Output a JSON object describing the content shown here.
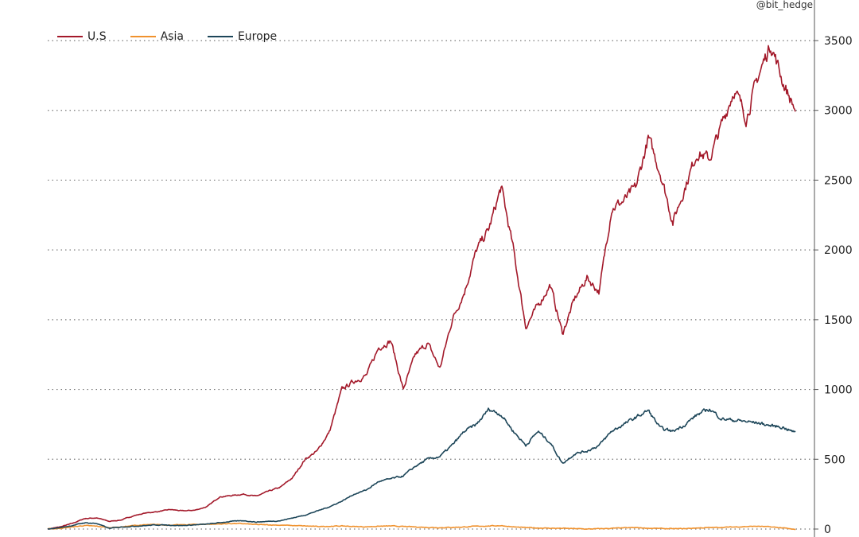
{
  "credit": "@bit_hedge",
  "chart_data": {
    "type": "line",
    "title": "",
    "xlabel": "",
    "ylabel": "",
    "ylim": [
      0,
      3600
    ],
    "y_ticks": [
      0,
      500,
      1000,
      1500,
      2000,
      2500,
      3000,
      3500
    ],
    "y_axis_position": "right",
    "grid": "horizontal dotted",
    "legend_position": "top-left",
    "colors": {
      "U.S": "#a3192a",
      "Asia": "#f0922e",
      "Europe": "#1d4659"
    },
    "series": [
      {
        "name": "U.S",
        "values": [
          0,
          15,
          40,
          75,
          80,
          55,
          65,
          95,
          115,
          125,
          140,
          130,
          135,
          160,
          230,
          240,
          250,
          235,
          270,
          300,
          370,
          500,
          560,
          700,
          1000,
          1060,
          1100,
          1300,
          1350,
          1000,
          1250,
          1330,
          1150,
          1500,
          1700,
          2000,
          2150,
          2450,
          2000,
          1450,
          1600,
          1750,
          1400,
          1650,
          1800,
          1700,
          2300,
          2350,
          2450,
          2800,
          2550,
          2200,
          2450,
          2700,
          2650,
          2900,
          3150,
          2950,
          3250,
          3480,
          3200,
          3000
        ]
      },
      {
        "name": "Asia",
        "values": [
          0,
          5,
          15,
          25,
          20,
          10,
          15,
          25,
          30,
          32,
          28,
          30,
          33,
          35,
          36,
          40,
          38,
          32,
          30,
          28,
          25,
          22,
          18,
          20,
          22,
          18,
          16,
          20,
          22,
          18,
          15,
          12,
          10,
          12,
          15,
          20,
          22,
          25,
          15,
          10,
          8,
          6,
          5,
          3,
          0,
          2,
          5,
          8,
          10,
          6,
          4,
          2,
          3,
          8,
          10,
          12,
          15,
          18,
          20,
          15,
          8,
          -5
        ]
      },
      {
        "name": "Europe",
        "values": [
          0,
          10,
          25,
          45,
          40,
          5,
          15,
          20,
          25,
          30,
          28,
          25,
          30,
          35,
          45,
          55,
          60,
          50,
          55,
          60,
          80,
          100,
          130,
          160,
          200,
          250,
          280,
          340,
          360,
          380,
          450,
          500,
          520,
          600,
          700,
          750,
          860,
          820,
          700,
          600,
          700,
          620,
          470,
          540,
          560,
          600,
          700,
          750,
          800,
          850,
          720,
          700,
          750,
          820,
          860,
          790,
          780,
          770,
          760,
          740,
          730,
          690
        ]
      }
    ]
  }
}
